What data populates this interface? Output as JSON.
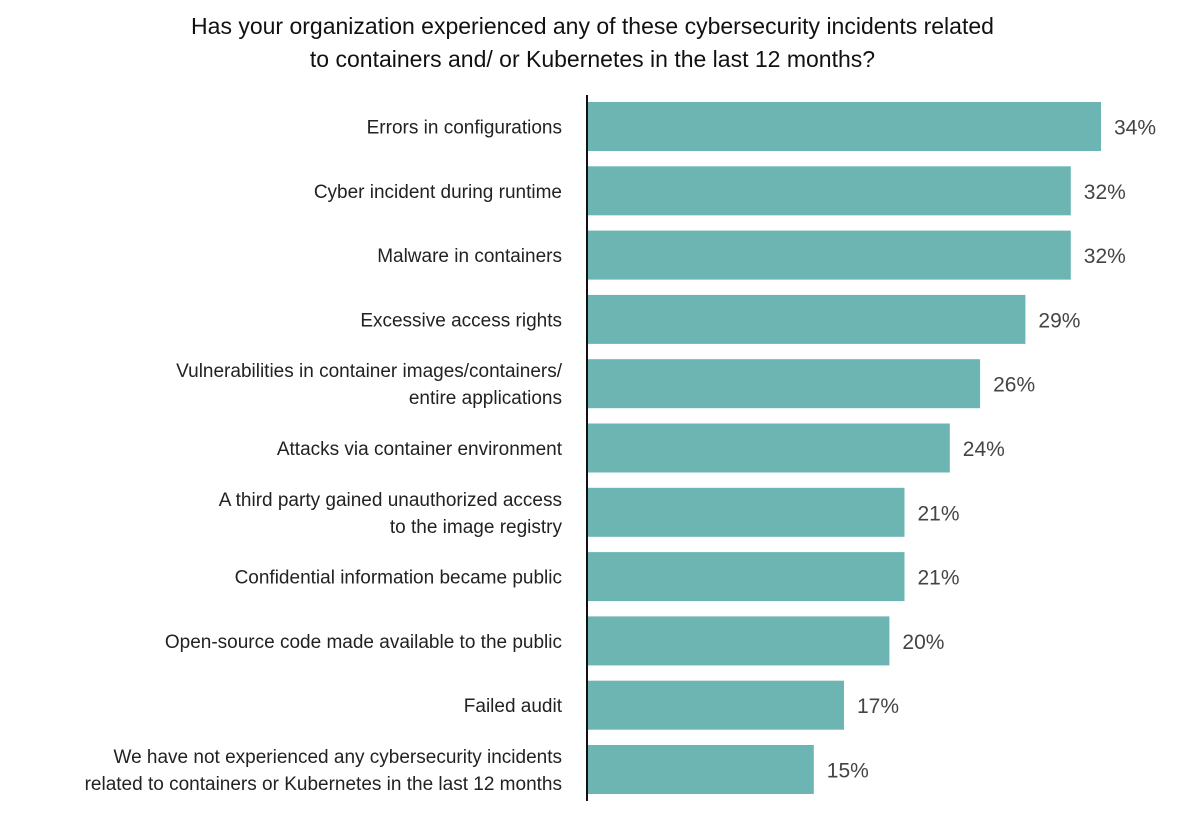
{
  "chart_data": {
    "type": "bar",
    "orientation": "horizontal",
    "title_lines": [
      "Has your organization experienced any of these cybersecurity incidents related",
      "to containers and/ or Kubernetes in the last 12 months?"
    ],
    "categories": [
      [
        "Errors in configurations"
      ],
      [
        "Cyber incident during runtime"
      ],
      [
        "Malware in containers"
      ],
      [
        "Excessive access rights"
      ],
      [
        "Vulnerabilities in container images/containers/",
        "entire applications"
      ],
      [
        "Attacks via container environment"
      ],
      [
        "A third party gained unauthorized access",
        "to the image registry"
      ],
      [
        "Confidential information became public"
      ],
      [
        "Open-source code made available to the public"
      ],
      [
        "Failed audit"
      ],
      [
        "We have not experienced any cybersecurity incidents",
        "related to containers or Kubernetes in the last 12 months"
      ]
    ],
    "values": [
      34,
      32,
      32,
      29,
      26,
      24,
      21,
      21,
      20,
      17,
      15
    ],
    "value_labels": [
      "34%",
      "32%",
      "32%",
      "29%",
      "26%",
      "24%",
      "21%",
      "21%",
      "20%",
      "17%",
      "15%"
    ],
    "unit": "%",
    "xlim": [
      0,
      34
    ],
    "grid": false,
    "legend": "none",
    "bar_color": "#6db5b3",
    "axis_color": "#111111",
    "label_color": "#222222",
    "value_label_color": "#444444"
  }
}
